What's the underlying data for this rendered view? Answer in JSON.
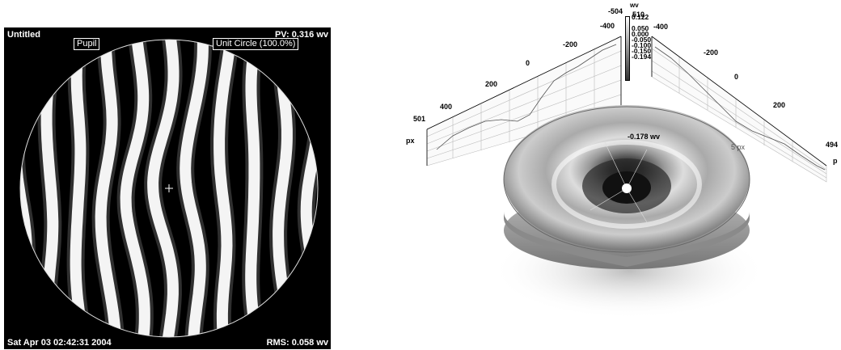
{
  "fringe_panel": {
    "title": "Untitled",
    "pv": "PV: 0.316 wv",
    "rms": "RMS: 0.058 wv",
    "date": "Sat Apr 03 02:42:31 2004",
    "pupil_label": "Pupil",
    "unit_circle_label": "Unit Circle (100.0%)",
    "crosshair_icon": "crosshair-icon"
  },
  "surface_plot": {
    "unit": "wv",
    "legend_values": [
      "0.122",
      "0.050",
      "0.000",
      "-0.050",
      "-0.100",
      "-0.150",
      "-0.194"
    ],
    "left_axis_ticks": [
      "501",
      "400",
      "200",
      "0",
      "-200",
      "-400",
      "-504"
    ],
    "right_axis_ticks": [
      "510",
      "-400",
      "-200",
      "0",
      "200",
      "494"
    ],
    "axis_unit_left": "px",
    "axis_unit_right": "p",
    "center_value": "-0.178 wv",
    "offset_label": "5 px"
  }
}
